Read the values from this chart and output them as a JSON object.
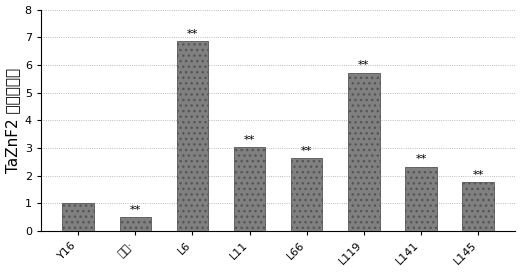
{
  "categories": [
    "Y16",
    "空载·",
    "L6",
    "L11",
    "L66",
    "L119",
    "L141",
    "L145"
  ],
  "values": [
    1.0,
    0.5,
    6.85,
    3.02,
    2.62,
    5.72,
    2.32,
    1.76
  ],
  "annotations": [
    null,
    "**",
    "**",
    "**",
    "**",
    "**",
    "**",
    "**"
  ],
  "bar_color": "#7a7a8a",
  "bar_facecolor": "#808080",
  "ylim": [
    0,
    8
  ],
  "yticks": [
    0,
    1,
    2,
    3,
    4,
    5,
    6,
    7,
    8
  ],
  "ylabel": "TaZnF2 相对表达量",
  "grid_style": "dotted",
  "annotation_fontsize": 8,
  "ylabel_fontsize": 11,
  "tick_fontsize": 8,
  "bar_width": 0.55,
  "background_color": "#ffffff"
}
